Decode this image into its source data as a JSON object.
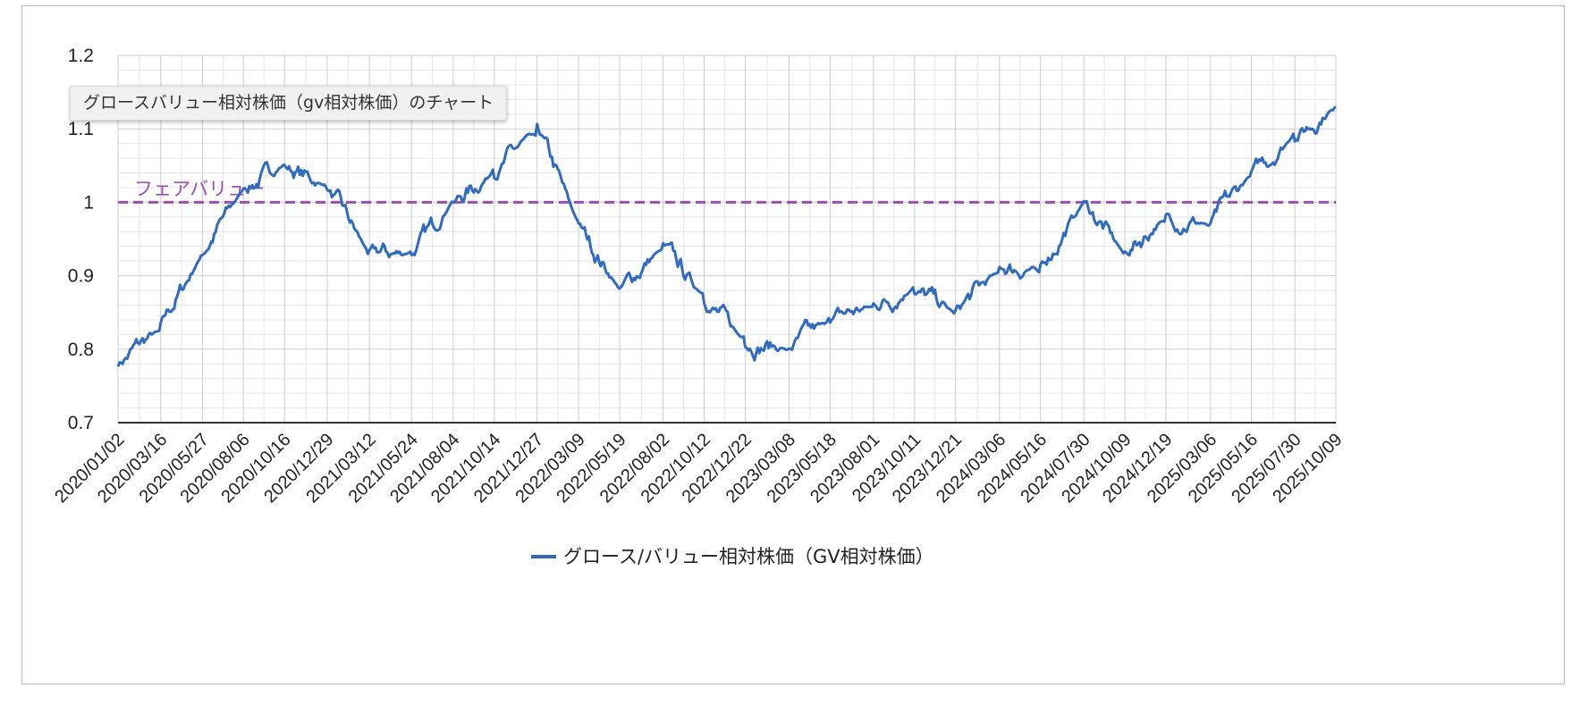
{
  "tooltip": "グロースバリュー相対株価（gv相対株価）のチャート",
  "colors": {
    "series": "#2f6bc1",
    "reference": "#9b4db5",
    "axis": "#333333",
    "grid_major": "#cccccc",
    "grid_minor": "#e6e6e6"
  },
  "chart_data": {
    "type": "line",
    "title": "",
    "xlabel": "",
    "ylabel": "",
    "ylim": [
      0.7,
      1.2
    ],
    "yticks": [
      "0.7",
      "0.8",
      "0.9",
      "1",
      "1.1",
      "1.2"
    ],
    "grid": true,
    "legend_position": "bottom",
    "x_tick_labels": [
      "2020/01/02",
      "2020/03/16",
      "2020/05/27",
      "2020/08/06",
      "2020/10/16",
      "2020/12/29",
      "2021/03/12",
      "2021/05/24",
      "2021/08/04",
      "2021/10/14",
      "2021/12/27",
      "2022/03/09",
      "2022/05/19",
      "2022/08/02",
      "2022/10/12",
      "2022/12/22",
      "2023/03/08",
      "2023/05/18",
      "2023/08/01",
      "2023/10/11",
      "2023/12/21",
      "2024/03/06",
      "2024/05/16",
      "2024/07/30",
      "2024/10/09",
      "2024/12/19",
      "2025/03/06",
      "2025/05/16",
      "2025/07/30",
      "2025/10/09"
    ],
    "reference_line": {
      "label": "フェアバリュー",
      "value": 1.0
    },
    "series": [
      {
        "name": "グロース/バリュー相対株価（GV相対株価）",
        "x": [
          "2020/01/02",
          "2020/03/16",
          "2020/05/27",
          "2020/08/06",
          "2020/10/16",
          "2020/12/29",
          "2021/03/12",
          "2021/05/24",
          "2021/08/04",
          "2021/10/14",
          "2021/12/27",
          "2022/03/09",
          "2022/05/19",
          "2022/08/02",
          "2022/10/12",
          "2022/12/22",
          "2023/03/08",
          "2023/05/18",
          "2023/08/01",
          "2023/10/11",
          "2023/12/21",
          "2024/03/06",
          "2024/05/16",
          "2024/07/30",
          "2024/10/09",
          "2024/12/19",
          "2025/03/06",
          "2025/05/16",
          "2025/07/30",
          "2025/10/09"
        ],
        "values": [
          0.78,
          0.83,
          0.93,
          1.02,
          1.05,
          1.02,
          0.93,
          0.93,
          1.0,
          1.04,
          1.1,
          0.97,
          0.88,
          0.94,
          0.87,
          0.81,
          0.8,
          0.84,
          0.86,
          0.88,
          0.85,
          0.91,
          0.91,
          1.0,
          0.93,
          0.98,
          0.97,
          1.04,
          1.09,
          1.13
        ]
      }
    ]
  }
}
